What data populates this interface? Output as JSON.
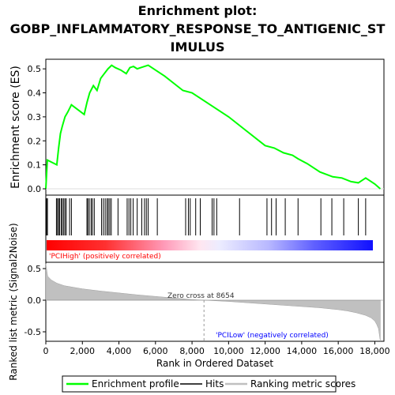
{
  "chart_data": {
    "type": "line",
    "title_lines": [
      "Enrichment plot:",
      "GOBP_INFLAMMATORY_RESPONSE_TO_ANTIGENIC_ST",
      "IMULUS"
    ],
    "xlabel": "Rank in Ordered Dataset",
    "es_panel": {
      "ylabel": "Enrichment score (ES)",
      "ylim": [
        0,
        0.54
      ],
      "yticks": [
        0.0,
        0.1,
        0.2,
        0.3,
        0.4,
        0.5
      ],
      "ytick_labels": [
        "0.0",
        "0.1",
        "0.2",
        "0.3",
        "0.4",
        "0.5"
      ],
      "series": [
        {
          "name": "Enrichment profile",
          "color": "#00ff00",
          "x": [
            0,
            80,
            600,
            700,
            800,
            900,
            1050,
            1200,
            1400,
            2100,
            2250,
            2400,
            2600,
            2800,
            3000,
            3200,
            3400,
            3600,
            3800,
            4100,
            4400,
            4600,
            4800,
            5000,
            5200,
            5400,
            5600,
            6100,
            6500,
            7000,
            7500,
            8000,
            9000,
            10000,
            11000,
            12000,
            12500,
            13000,
            13500,
            13800,
            14300,
            14800,
            15000,
            15700,
            16200,
            16700,
            17100,
            17500,
            18000,
            18300
          ],
          "y": [
            0.0,
            0.12,
            0.1,
            0.17,
            0.23,
            0.26,
            0.3,
            0.32,
            0.35,
            0.31,
            0.36,
            0.4,
            0.43,
            0.41,
            0.46,
            0.48,
            0.5,
            0.515,
            0.505,
            0.495,
            0.48,
            0.505,
            0.51,
            0.5,
            0.505,
            0.51,
            0.515,
            0.49,
            0.47,
            0.44,
            0.41,
            0.4,
            0.35,
            0.3,
            0.24,
            0.18,
            0.17,
            0.15,
            0.14,
            0.125,
            0.105,
            0.08,
            0.07,
            0.05,
            0.045,
            0.03,
            0.025,
            0.045,
            0.02,
            0.0
          ]
        }
      ]
    },
    "hits_panel": {
      "series_name": "Hits",
      "hit_ranks": [
        40,
        90,
        580,
        640,
        700,
        760,
        850,
        900,
        980,
        1050,
        1120,
        1300,
        1400,
        2250,
        2300,
        2380,
        2480,
        2550,
        2650,
        3050,
        3150,
        3250,
        3350,
        3420,
        3500,
        3580,
        3950,
        4450,
        4550,
        4650,
        4780,
        5000,
        5250,
        5400,
        5500,
        5600,
        6100,
        7650,
        7800,
        7900,
        8200,
        8450,
        9100,
        9200,
        9350,
        10600,
        12100,
        12350,
        12600,
        13100,
        13800,
        15050,
        15650,
        16300,
        17100,
        17500
      ],
      "gradient_colors": [
        "#ff0000",
        "#ffffff",
        "#0000ff"
      ]
    },
    "metric_panel": {
      "ylabel": "Ranked list metric (Signal2Noise)",
      "series_name": "Ranking metric scores",
      "ylim": [
        -0.65,
        0.6
      ],
      "yticks": [
        -0.5,
        0.0,
        0.5
      ],
      "ytick_labels": [
        "-0.5",
        "0.0",
        "0.5"
      ],
      "x": [
        0,
        100,
        300,
        600,
        1000,
        2000,
        3000,
        4000,
        5000,
        6000,
        7000,
        8000,
        8654,
        9000,
        10000,
        11000,
        12000,
        13000,
        14000,
        15000,
        16000,
        16500,
        17000,
        17500,
        17800,
        18000,
        18100,
        18200,
        18300
      ],
      "y": [
        0.58,
        0.38,
        0.32,
        0.27,
        0.23,
        0.18,
        0.145,
        0.115,
        0.085,
        0.06,
        0.035,
        0.01,
        0.0,
        -0.005,
        -0.02,
        -0.04,
        -0.06,
        -0.08,
        -0.1,
        -0.12,
        -0.15,
        -0.17,
        -0.2,
        -0.24,
        -0.28,
        -0.33,
        -0.38,
        -0.45,
        -0.65
      ],
      "zero_cross_label": "Zero cross at 8654",
      "high_label": "'PCIHigh' (positively correlated)",
      "low_label": "'PCILow' (negatively correlated)"
    },
    "xlim": [
      0,
      18500
    ],
    "xticks": [
      0,
      2000,
      4000,
      6000,
      8000,
      10000,
      12000,
      14000,
      16000,
      18000
    ],
    "xtick_labels": [
      "0",
      "2,000",
      "4,000",
      "6,000",
      "8,000",
      "10,000",
      "12,000",
      "14,000",
      "16,000",
      "18,000"
    ],
    "legend": {
      "placement": "bottom",
      "entries": [
        {
          "label": "Enrichment profile",
          "color": "#00ff00"
        },
        {
          "label": "Hits",
          "color": "#000000"
        },
        {
          "label": "Ranking metric scores",
          "color": "#c0c0c0"
        }
      ]
    }
  }
}
